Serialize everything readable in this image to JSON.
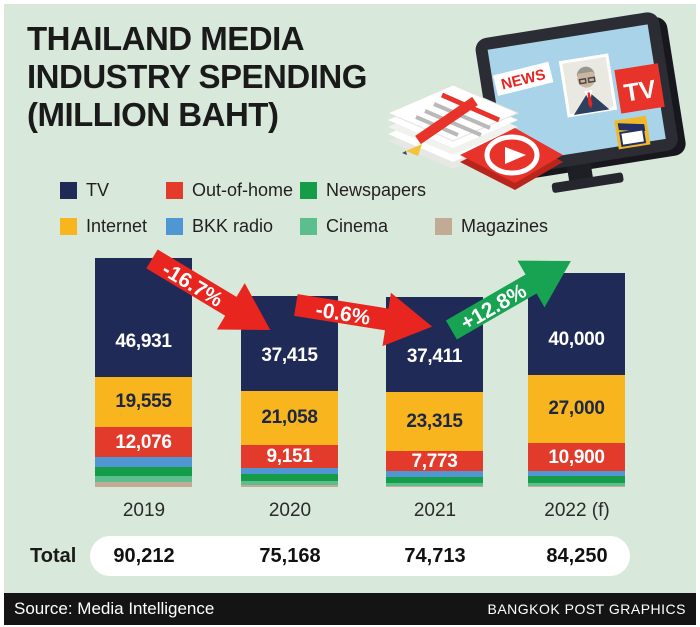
{
  "header": {
    "title_lines": [
      "THAILAND MEDIA",
      "INDUSTRY SPENDING",
      "(MILLION BAHT)"
    ]
  },
  "footer": {
    "source": "Source: Media Intelligence",
    "credit": "BANGKOK POST GRAPHICS"
  },
  "totals_row": {
    "label": "Total",
    "values": [
      "90,212",
      "75,168",
      "74,713",
      "84,250"
    ]
  },
  "illustration": {
    "news_label": "NEWS",
    "tv_label": "TV"
  },
  "colors": {
    "background": "#d8e8da",
    "text": "#231f20",
    "footer_bg": "#141414",
    "pill_bg": "#ffffff",
    "arrow_red": "#e8251f",
    "arrow_green": "#17a351"
  },
  "legend": {
    "items": [
      {
        "label": "TV",
        "color": "#1f2a56"
      },
      {
        "label": "Out-of-home",
        "color": "#e23b2c"
      },
      {
        "label": "Newspapers",
        "color": "#149c49"
      },
      {
        "label": "Internet",
        "color": "#f9b51e"
      },
      {
        "label": "BKK radio",
        "color": "#4f96d2"
      },
      {
        "label": "Cinema",
        "color": "#5cbd8d"
      },
      {
        "label": "Magazines",
        "color": "#c2ab94"
      }
    ]
  },
  "chart_data": {
    "type": "bar",
    "stacked": true,
    "unit": "million baht",
    "title": "Thailand media industry spending (million baht)",
    "categories": [
      "2019",
      "2020",
      "2021",
      "2022 (f)"
    ],
    "series": [
      {
        "name": "TV",
        "color": "#1f2a56",
        "values": [
          46931,
          37415,
          37411,
          40000
        ],
        "show_labels": true,
        "label_color": "#ffffff"
      },
      {
        "name": "Internet",
        "color": "#f9b51e",
        "values": [
          19555,
          21058,
          23315,
          27000
        ],
        "show_labels": true,
        "label_color": "#1c2745"
      },
      {
        "name": "Out-of-home",
        "color": "#e23b2c",
        "values": [
          12076,
          9151,
          7773,
          10900
        ],
        "show_labels": true,
        "label_color": "#ffffff"
      },
      {
        "name": "BKK radio",
        "color": "#4f96d2",
        "values": [
          3900,
          2500,
          2100,
          2100
        ],
        "estimated": true
      },
      {
        "name": "Newspapers",
        "color": "#149c49",
        "values": [
          3500,
          2800,
          2500,
          2600
        ],
        "estimated": true
      },
      {
        "name": "Cinema",
        "color": "#5cbd8d",
        "values": [
          2300,
          1500,
          1100,
          1150
        ],
        "estimated": true
      },
      {
        "name": "Magazines",
        "color": "#c2ab94",
        "values": [
          1950,
          744,
          514,
          500
        ],
        "estimated": true
      }
    ],
    "totals": [
      90212,
      75168,
      74713,
      84250
    ],
    "legend_position": "top",
    "change_arrows": [
      {
        "label": "-16.7%",
        "color": "#e8251f",
        "direction": "down",
        "between": [
          "2019",
          "2020"
        ]
      },
      {
        "label": "-0.6%",
        "color": "#e8251f",
        "direction": "down",
        "between": [
          "2020",
          "2021"
        ]
      },
      {
        "label": "+12.8%",
        "color": "#17a351",
        "direction": "up",
        "between": [
          "2021",
          "2022 (f)"
        ]
      }
    ]
  }
}
